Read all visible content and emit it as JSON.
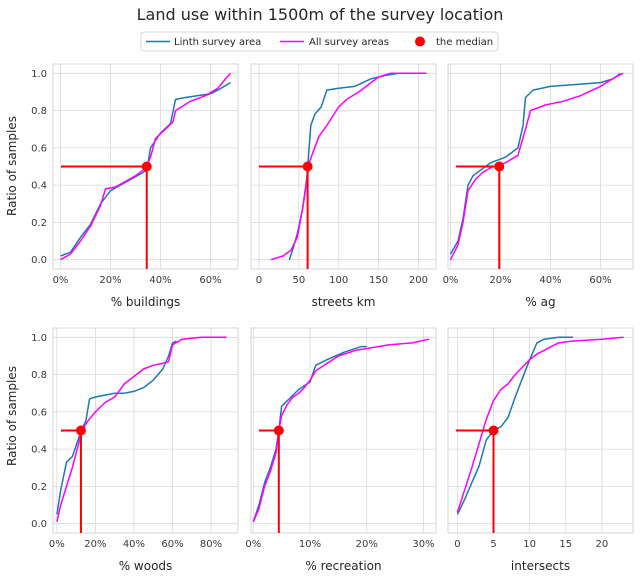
{
  "figure": {
    "title": "Land use within 1500m of the survey location",
    "ylabel": "Ratio of samples"
  },
  "legend": {
    "items": [
      {
        "label": "Linth survey area",
        "color": "#1f77b4",
        "kind": "line"
      },
      {
        "label": "All survey areas",
        "color": "#ff00ff",
        "kind": "line"
      },
      {
        "label": "the median",
        "color": "#ff0000",
        "kind": "dot"
      }
    ],
    "placement": "top-center"
  },
  "colors": {
    "linth": "#1f77b4",
    "all": "#ff00ff",
    "median": "#ff0000",
    "grid": "#d9d9d9",
    "panel_bg": "#ffffff"
  },
  "chart_data": [
    {
      "type": "line",
      "xlabel": "% buildings",
      "xlim": [
        -0.03,
        0.71
      ],
      "ylim": [
        -0.05,
        1.05
      ],
      "xticks": [
        0,
        0.2,
        0.4,
        0.6
      ],
      "xtick_labels": [
        "0%",
        "20%",
        "40%",
        "60%"
      ],
      "yticks": [
        0,
        0.2,
        0.4,
        0.6,
        0.8,
        1.0
      ],
      "ytick_labels": [
        "0.0",
        "0.2",
        "0.4",
        "0.6",
        "0.8",
        "1.0"
      ],
      "grid": true,
      "median": {
        "x": 0.345,
        "y": 0.5
      },
      "series": [
        {
          "name": "Linth survey area",
          "points": [
            [
              0,
              0.02
            ],
            [
              0.04,
              0.04
            ],
            [
              0.08,
              0.12
            ],
            [
              0.12,
              0.19
            ],
            [
              0.16,
              0.3
            ],
            [
              0.2,
              0.37
            ],
            [
              0.24,
              0.4
            ],
            [
              0.28,
              0.43
            ],
            [
              0.32,
              0.46
            ],
            [
              0.345,
              0.48
            ],
            [
              0.36,
              0.6
            ],
            [
              0.4,
              0.68
            ],
            [
              0.44,
              0.73
            ],
            [
              0.46,
              0.86
            ],
            [
              0.5,
              0.87
            ],
            [
              0.6,
              0.89
            ],
            [
              0.63,
              0.91
            ],
            [
              0.68,
              0.95
            ]
          ]
        },
        {
          "name": "All survey areas",
          "points": [
            [
              0,
              0
            ],
            [
              0.04,
              0.03
            ],
            [
              0.08,
              0.1
            ],
            [
              0.12,
              0.18
            ],
            [
              0.16,
              0.29
            ],
            [
              0.18,
              0.38
            ],
            [
              0.22,
              0.39
            ],
            [
              0.26,
              0.42
            ],
            [
              0.3,
              0.45
            ],
            [
              0.34,
              0.49
            ],
            [
              0.36,
              0.55
            ],
            [
              0.38,
              0.65
            ],
            [
              0.42,
              0.7
            ],
            [
              0.45,
              0.74
            ],
            [
              0.46,
              0.8
            ],
            [
              0.52,
              0.85
            ],
            [
              0.58,
              0.88
            ],
            [
              0.63,
              0.92
            ],
            [
              0.66,
              0.97
            ],
            [
              0.68,
              1.0
            ]
          ]
        }
      ]
    },
    {
      "type": "line",
      "xlabel": "streets km",
      "xlim": [
        -10,
        222
      ],
      "ylim": [
        -0.05,
        1.05
      ],
      "xticks": [
        0,
        50,
        100,
        150,
        200
      ],
      "xtick_labels": [
        "0",
        "50",
        "100",
        "150",
        "200"
      ],
      "yticks": [
        0,
        0.2,
        0.4,
        0.6,
        0.8,
        1.0
      ],
      "ytick_labels": [],
      "grid": true,
      "median": {
        "x": 61,
        "y": 0.5
      },
      "series": [
        {
          "name": "Linth survey area",
          "points": [
            [
              38,
              0
            ],
            [
              42,
              0.05
            ],
            [
              48,
              0.14
            ],
            [
              55,
              0.28
            ],
            [
              60,
              0.44
            ],
            [
              62,
              0.55
            ],
            [
              65,
              0.72
            ],
            [
              70,
              0.78
            ],
            [
              78,
              0.82
            ],
            [
              85,
              0.91
            ],
            [
              100,
              0.92
            ],
            [
              120,
              0.93
            ],
            [
              140,
              0.97
            ],
            [
              160,
              0.99
            ],
            [
              175,
              1.0
            ]
          ]
        },
        {
          "name": "All survey areas",
          "points": [
            [
              15,
              0
            ],
            [
              30,
              0.02
            ],
            [
              40,
              0.05
            ],
            [
              48,
              0.12
            ],
            [
              55,
              0.28
            ],
            [
              60,
              0.42
            ],
            [
              63,
              0.52
            ],
            [
              68,
              0.58
            ],
            [
              75,
              0.66
            ],
            [
              85,
              0.72
            ],
            [
              100,
              0.82
            ],
            [
              110,
              0.86
            ],
            [
              125,
              0.9
            ],
            [
              150,
              0.98
            ],
            [
              165,
              1.0
            ],
            [
              210,
              1.0
            ]
          ]
        }
      ]
    },
    {
      "type": "line",
      "xlabel": "% ag",
      "xlim": [
        -0.01,
        0.73
      ],
      "ylim": [
        -0.05,
        1.05
      ],
      "xticks": [
        0,
        0.2,
        0.4,
        0.6
      ],
      "xtick_labels": [
        "0%",
        "20%",
        "40%",
        "60%"
      ],
      "yticks": [
        0,
        0.2,
        0.4,
        0.6,
        0.8,
        1.0
      ],
      "ytick_labels": [],
      "grid": true,
      "median": {
        "x": 0.195,
        "y": 0.5
      },
      "series": [
        {
          "name": "Linth survey area",
          "points": [
            [
              0,
              0.03
            ],
            [
              0.03,
              0.1
            ],
            [
              0.05,
              0.22
            ],
            [
              0.07,
              0.4
            ],
            [
              0.09,
              0.45
            ],
            [
              0.12,
              0.48
            ],
            [
              0.16,
              0.52
            ],
            [
              0.22,
              0.55
            ],
            [
              0.27,
              0.6
            ],
            [
              0.29,
              0.72
            ],
            [
              0.3,
              0.87
            ],
            [
              0.33,
              0.91
            ],
            [
              0.4,
              0.93
            ],
            [
              0.5,
              0.94
            ],
            [
              0.6,
              0.95
            ],
            [
              0.65,
              0.97
            ],
            [
              0.68,
              1.0
            ]
          ]
        },
        {
          "name": "All survey areas",
          "points": [
            [
              0,
              0
            ],
            [
              0.03,
              0.08
            ],
            [
              0.05,
              0.2
            ],
            [
              0.07,
              0.37
            ],
            [
              0.1,
              0.43
            ],
            [
              0.13,
              0.47
            ],
            [
              0.17,
              0.5
            ],
            [
              0.22,
              0.52
            ],
            [
              0.27,
              0.56
            ],
            [
              0.3,
              0.7
            ],
            [
              0.32,
              0.8
            ],
            [
              0.38,
              0.83
            ],
            [
              0.45,
              0.85
            ],
            [
              0.52,
              0.88
            ],
            [
              0.6,
              0.93
            ],
            [
              0.66,
              0.98
            ],
            [
              0.69,
              1.0
            ]
          ]
        }
      ]
    },
    {
      "type": "line",
      "xlabel": "% woods",
      "xlim": [
        -0.02,
        0.94
      ],
      "ylim": [
        -0.05,
        1.05
      ],
      "xticks": [
        0,
        0.2,
        0.4,
        0.6,
        0.8
      ],
      "xtick_labels": [
        "0%",
        "20%",
        "40%",
        "60%",
        "80%"
      ],
      "yticks": [
        0,
        0.2,
        0.4,
        0.6,
        0.8,
        1.0
      ],
      "ytick_labels": [
        "0.0",
        "0.2",
        "0.4",
        "0.6",
        "0.8",
        "1.0"
      ],
      "grid": true,
      "median": {
        "x": 0.125,
        "y": 0.5
      },
      "series": [
        {
          "name": "Linth survey area",
          "points": [
            [
              0,
              0.05
            ],
            [
              0.02,
              0.18
            ],
            [
              0.05,
              0.33
            ],
            [
              0.08,
              0.36
            ],
            [
              0.11,
              0.45
            ],
            [
              0.125,
              0.5
            ],
            [
              0.15,
              0.55
            ],
            [
              0.17,
              0.67
            ],
            [
              0.2,
              0.68
            ],
            [
              0.25,
              0.69
            ],
            [
              0.3,
              0.7
            ],
            [
              0.35,
              0.7
            ],
            [
              0.4,
              0.71
            ],
            [
              0.45,
              0.73
            ],
            [
              0.5,
              0.77
            ],
            [
              0.55,
              0.83
            ],
            [
              0.58,
              0.9
            ],
            [
              0.6,
              0.97
            ],
            [
              0.62,
              0.98
            ]
          ]
        },
        {
          "name": "All survey areas",
          "points": [
            [
              0,
              0.01
            ],
            [
              0.02,
              0.1
            ],
            [
              0.05,
              0.2
            ],
            [
              0.08,
              0.3
            ],
            [
              0.11,
              0.42
            ],
            [
              0.13,
              0.5
            ],
            [
              0.16,
              0.55
            ],
            [
              0.2,
              0.6
            ],
            [
              0.25,
              0.65
            ],
            [
              0.3,
              0.68
            ],
            [
              0.35,
              0.75
            ],
            [
              0.4,
              0.79
            ],
            [
              0.45,
              0.83
            ],
            [
              0.5,
              0.85
            ],
            [
              0.55,
              0.86
            ],
            [
              0.58,
              0.87
            ],
            [
              0.6,
              0.96
            ],
            [
              0.65,
              0.99
            ],
            [
              0.75,
              1.0
            ],
            [
              0.88,
              1.0
            ]
          ]
        }
      ]
    },
    {
      "type": "line",
      "xlabel": "% recreation",
      "xlim": [
        -0.004,
        0.322
      ],
      "ylim": [
        -0.05,
        1.05
      ],
      "xticks": [
        0,
        0.1,
        0.2,
        0.3
      ],
      "xtick_labels": [
        "0%",
        "10%",
        "20%",
        "30%"
      ],
      "yticks": [
        0,
        0.2,
        0.4,
        0.6,
        0.8,
        1.0
      ],
      "ytick_labels": [],
      "grid": true,
      "median": {
        "x": 0.045,
        "y": 0.5
      },
      "series": [
        {
          "name": "Linth survey area",
          "points": [
            [
              0,
              0.01
            ],
            [
              0.01,
              0.1
            ],
            [
              0.02,
              0.22
            ],
            [
              0.03,
              0.3
            ],
            [
              0.04,
              0.4
            ],
            [
              0.045,
              0.5
            ],
            [
              0.05,
              0.63
            ],
            [
              0.06,
              0.66
            ],
            [
              0.07,
              0.69
            ],
            [
              0.08,
              0.72
            ],
            [
              0.09,
              0.74
            ],
            [
              0.1,
              0.76
            ],
            [
              0.11,
              0.85
            ],
            [
              0.13,
              0.88
            ],
            [
              0.16,
              0.92
            ],
            [
              0.19,
              0.95
            ],
            [
              0.2,
              0.95
            ]
          ]
        },
        {
          "name": "All survey areas",
          "points": [
            [
              0,
              0.01
            ],
            [
              0.01,
              0.08
            ],
            [
              0.02,
              0.2
            ],
            [
              0.03,
              0.28
            ],
            [
              0.04,
              0.38
            ],
            [
              0.045,
              0.5
            ],
            [
              0.05,
              0.58
            ],
            [
              0.06,
              0.64
            ],
            [
              0.07,
              0.68
            ],
            [
              0.08,
              0.7
            ],
            [
              0.09,
              0.73
            ],
            [
              0.1,
              0.77
            ],
            [
              0.11,
              0.82
            ],
            [
              0.13,
              0.86
            ],
            [
              0.15,
              0.9
            ],
            [
              0.18,
              0.93
            ],
            [
              0.2,
              0.94
            ],
            [
              0.24,
              0.96
            ],
            [
              0.28,
              0.97
            ],
            [
              0.31,
              0.99
            ]
          ]
        }
      ]
    },
    {
      "type": "line",
      "xlabel": "intersects",
      "xlim": [
        -1.3,
        24.3
      ],
      "ylim": [
        -0.05,
        1.05
      ],
      "xticks": [
        0,
        5,
        10,
        15,
        20
      ],
      "xtick_labels": [
        "0",
        "5",
        "10",
        "15",
        "20"
      ],
      "yticks": [
        0,
        0.2,
        0.4,
        0.6,
        0.8,
        1.0
      ],
      "ytick_labels": [],
      "grid": true,
      "median": {
        "x": 5,
        "y": 0.5
      },
      "series": [
        {
          "name": "Linth survey area",
          "points": [
            [
              0,
              0.05
            ],
            [
              1,
              0.13
            ],
            [
              2,
              0.22
            ],
            [
              3,
              0.31
            ],
            [
              4,
              0.45
            ],
            [
              5,
              0.5
            ],
            [
              6,
              0.52
            ],
            [
              7,
              0.57
            ],
            [
              8,
              0.68
            ],
            [
              9,
              0.78
            ],
            [
              10,
              0.88
            ],
            [
              11,
              0.97
            ],
            [
              12,
              0.99
            ],
            [
              14,
              1.0
            ],
            [
              16,
              1.0
            ]
          ]
        },
        {
          "name": "All survey areas",
          "points": [
            [
              0,
              0.06
            ],
            [
              1,
              0.18
            ],
            [
              2,
              0.3
            ],
            [
              3,
              0.43
            ],
            [
              4,
              0.56
            ],
            [
              5,
              0.66
            ],
            [
              6,
              0.72
            ],
            [
              7,
              0.75
            ],
            [
              8,
              0.8
            ],
            [
              9,
              0.84
            ],
            [
              10,
              0.88
            ],
            [
              11,
              0.91
            ],
            [
              12,
              0.93
            ],
            [
              13,
              0.95
            ],
            [
              14,
              0.97
            ],
            [
              16,
              0.98
            ],
            [
              20,
              0.99
            ],
            [
              23,
              1.0
            ]
          ]
        }
      ]
    }
  ]
}
